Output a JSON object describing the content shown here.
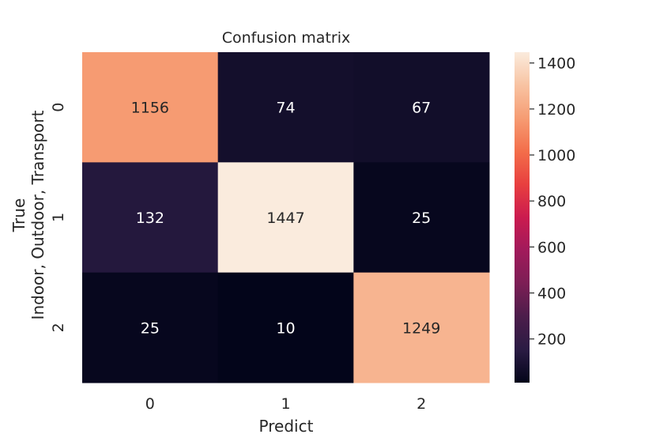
{
  "chart_data": {
    "type": "heatmap",
    "title": "Confusion matrix",
    "xlabel": "Predict",
    "ylabel_lines": [
      "True",
      "Indoor, Outdoor, Transport"
    ],
    "x_categories": [
      "0",
      "1",
      "2"
    ],
    "y_categories": [
      "0",
      "1",
      "2"
    ],
    "values": [
      [
        1156,
        74,
        67
      ],
      [
        132,
        1447,
        25
      ],
      [
        25,
        10,
        1249
      ]
    ],
    "color_range": [
      10,
      1447
    ],
    "colorbar": {
      "ticks": [
        200,
        400,
        600,
        800,
        1000,
        1200,
        1400
      ],
      "tick_labels": [
        "200",
        "400",
        "600",
        "800",
        "1000",
        "1200",
        "1400"
      ]
    },
    "colormap": "rocket",
    "colormap_stops": [
      "#03051a",
      "#2a1b43",
      "#4c1d4b",
      "#7c1e55",
      "#a11a5b",
      "#cb1b4f",
      "#e83f3f",
      "#f36e4a",
      "#f69c73",
      "#f8c3a2",
      "#faebdd"
    ],
    "text_colors": {
      "on_dark": "#ffffff",
      "on_light": "#262626"
    },
    "grid": false
  }
}
